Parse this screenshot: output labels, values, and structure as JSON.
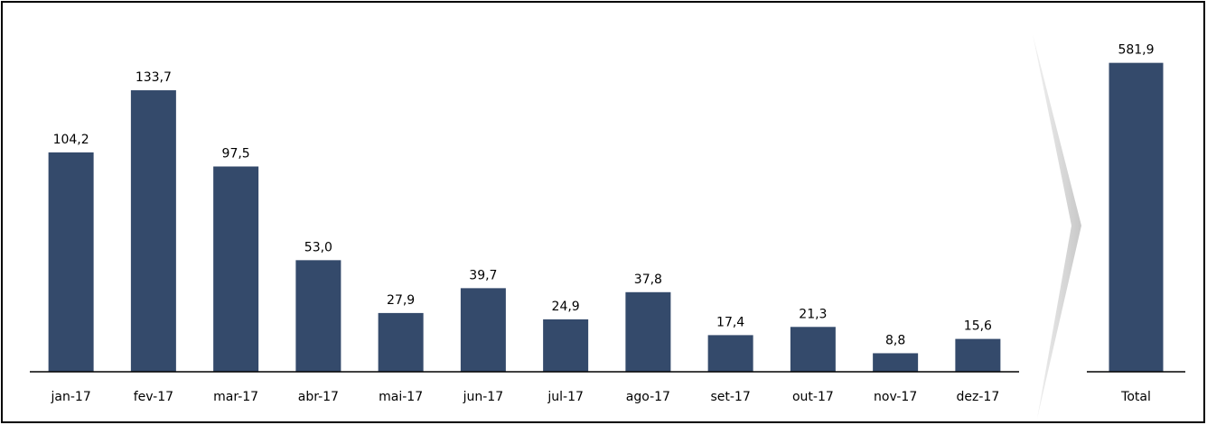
{
  "chart_data": [
    {
      "type": "bar",
      "categories": [
        "jan-17",
        "fev-17",
        "mar-17",
        "abr-17",
        "mai-17",
        "jun-17",
        "jul-17",
        "ago-17",
        "set-17",
        "out-17",
        "nov-17",
        "dez-17"
      ],
      "values": [
        104.2,
        133.7,
        97.5,
        53.0,
        27.9,
        39.7,
        24.9,
        37.8,
        17.4,
        21.3,
        8.8,
        15.6
      ],
      "value_labels": [
        "104,2",
        "133,7",
        "97,5",
        "53,0",
        "27,9",
        "39,7",
        "24,9",
        "37,8",
        "17,4",
        "21,3",
        "8,8",
        "15,6"
      ],
      "color": "#344a6b",
      "ylim": [
        0,
        150
      ]
    },
    {
      "type": "bar",
      "categories": [
        "Total"
      ],
      "values": [
        581.9
      ],
      "value_labels": [
        "581,9"
      ],
      "color": "#344a6b",
      "ylim": [
        0,
        600
      ]
    }
  ]
}
